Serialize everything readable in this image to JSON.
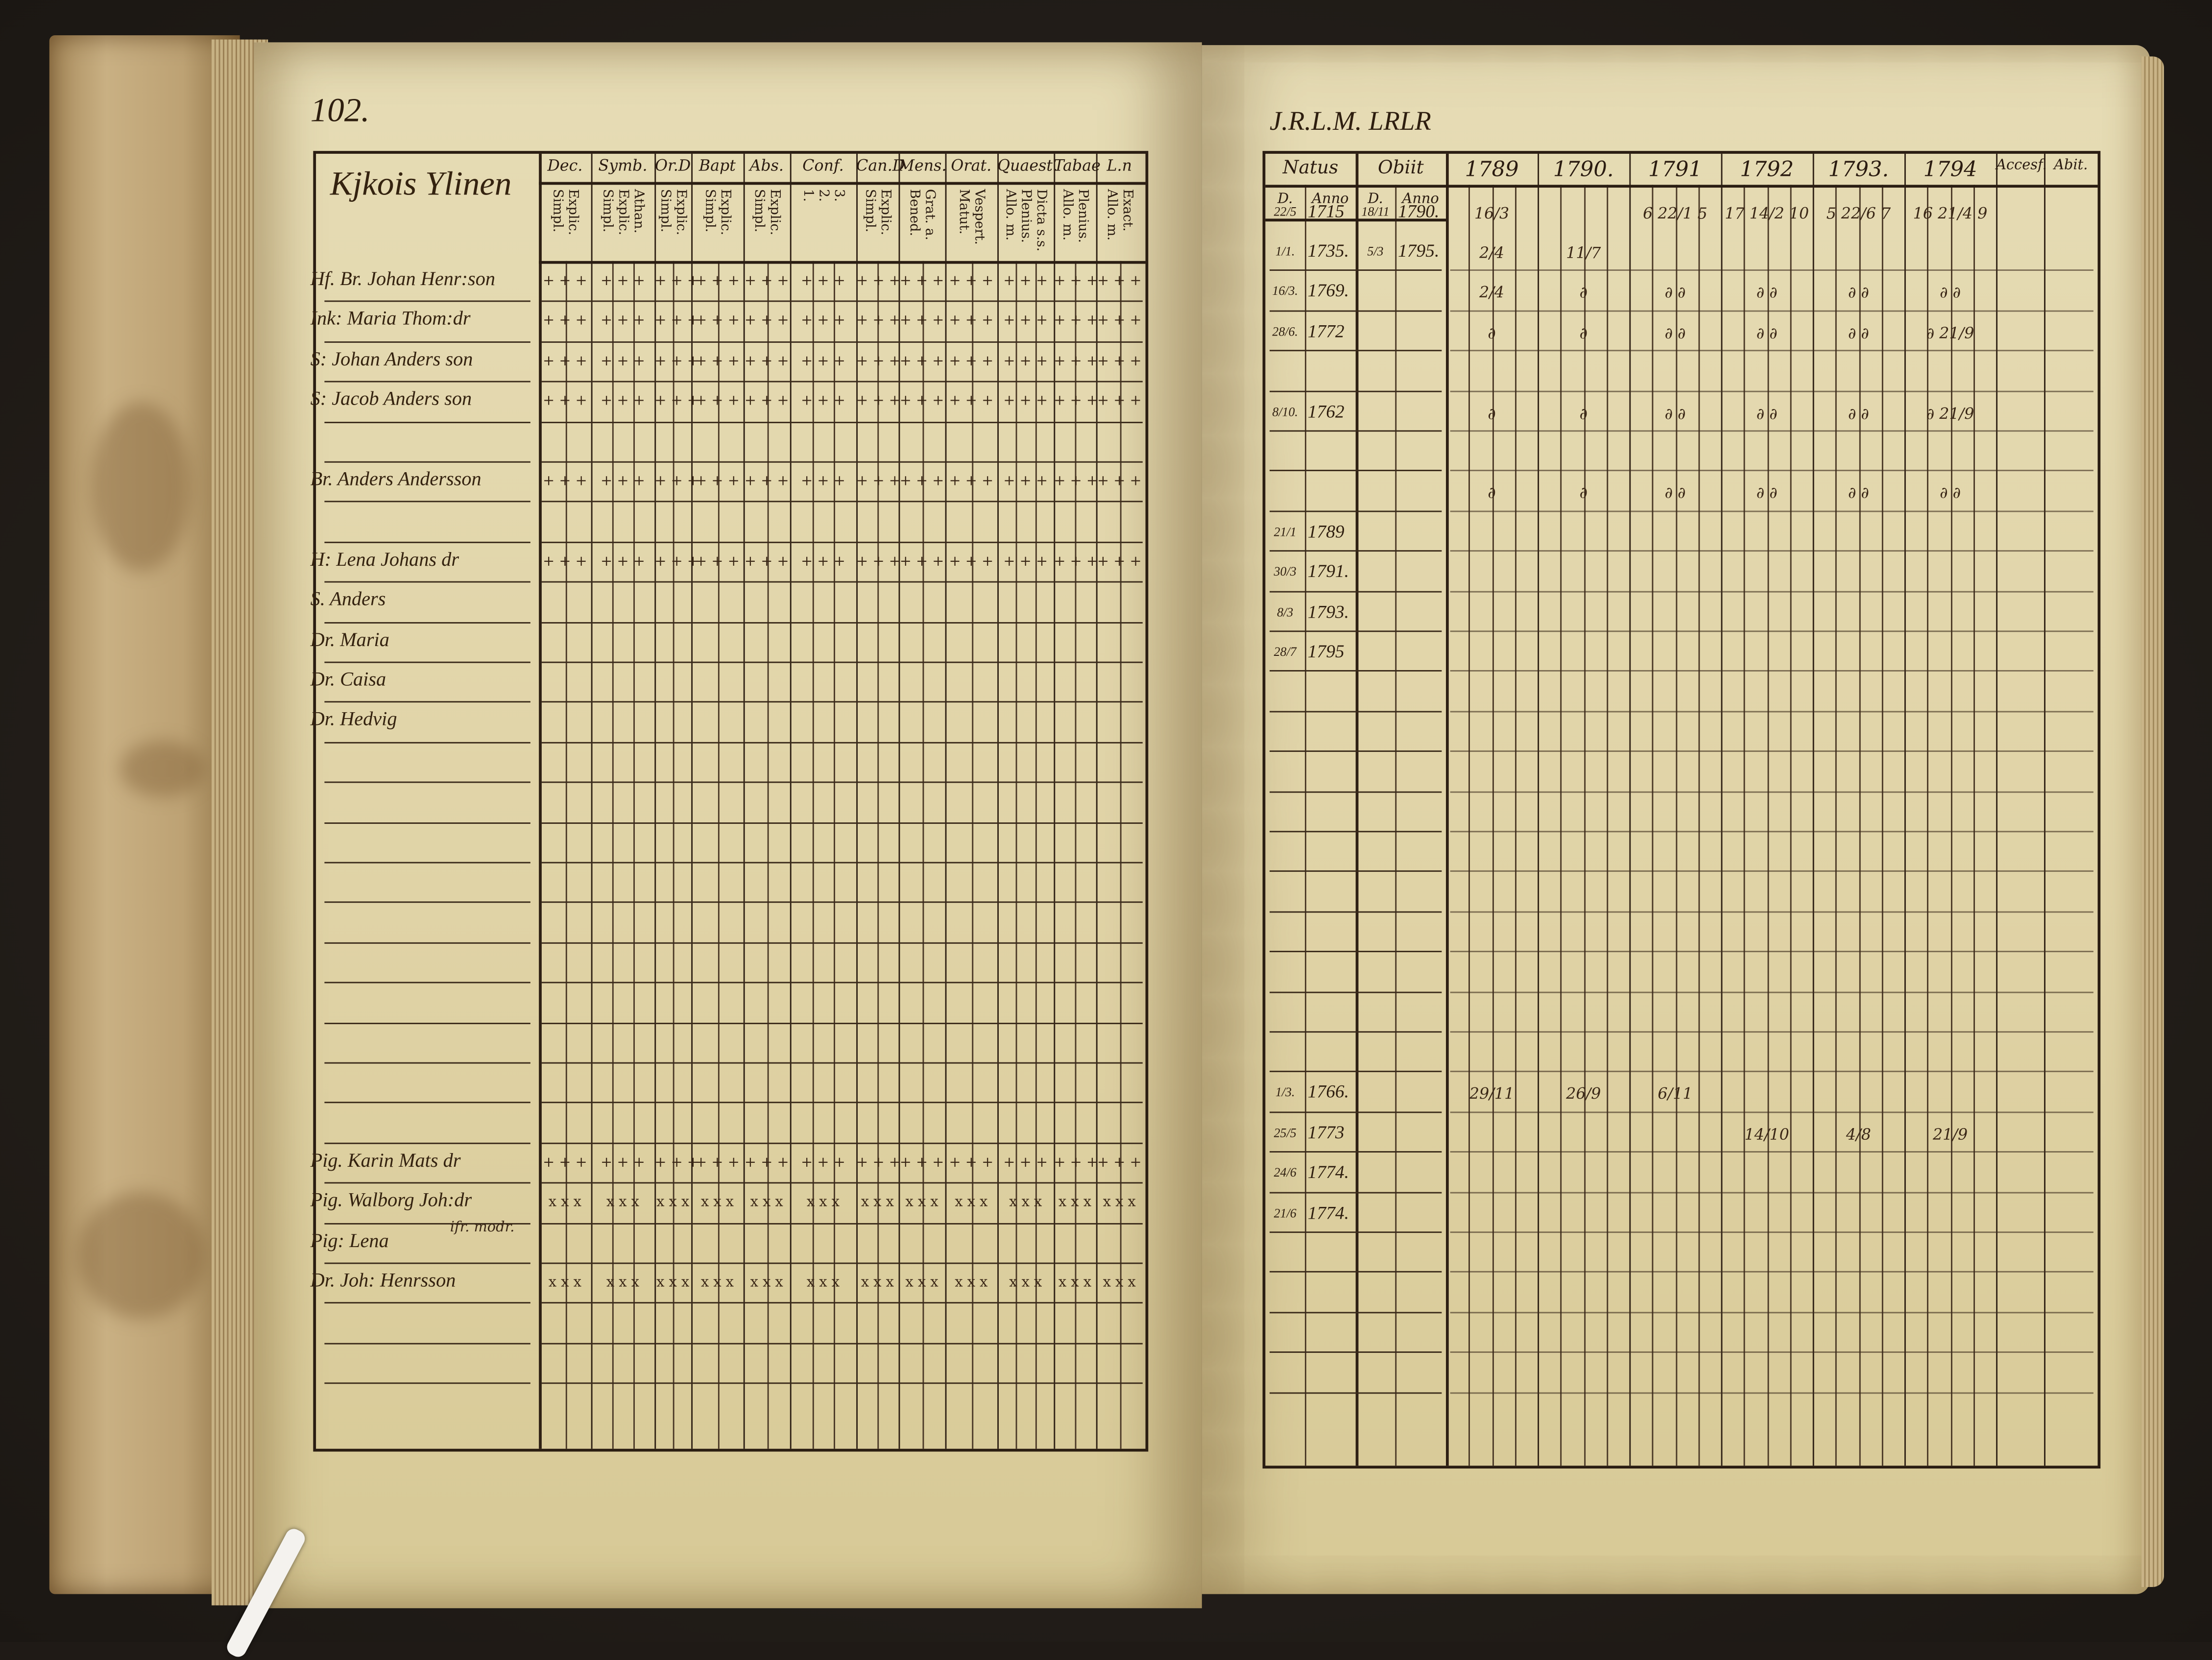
{
  "left_page": {
    "page_number": "102.",
    "heading": "Kjkois Ylinen",
    "columns": [
      {
        "label": "Dec.",
        "sub": [
          "Simpl.",
          "Explic."
        ]
      },
      {
        "label": "Symb.",
        "sub": [
          "Simpl.",
          "Explic.",
          "Athan."
        ]
      },
      {
        "label": "Or.D",
        "sub": [
          "Simpl.",
          "Explic."
        ]
      },
      {
        "label": "Bapt",
        "sub": [
          "Simpl.",
          "Explic."
        ]
      },
      {
        "label": "Abs.",
        "sub": [
          "Simpl.",
          "Explic."
        ]
      },
      {
        "label": "Conf.",
        "sub": [
          "1.",
          "2.",
          "3."
        ]
      },
      {
        "label": "Can.D",
        "sub": [
          "Simpl.",
          "Explic."
        ]
      },
      {
        "label": "Mens.",
        "sub": [
          "Bened.",
          "Grat. a."
        ]
      },
      {
        "label": "Orat.",
        "sub": [
          "Matut.",
          "Vespert."
        ]
      },
      {
        "label": "Quaest.",
        "sub": [
          "Allo. m.",
          "Plenius.",
          "Dicta s.s."
        ]
      },
      {
        "label": "Tabae",
        "sub": [
          "Allo. m.",
          "Plenius."
        ]
      },
      {
        "label": "L.n",
        "sub": [
          "Allo. m.",
          "Exact."
        ]
      }
    ]
  },
  "right_page": {
    "heading": "J.R.L.M. LRLR",
    "natus_label": "Natus",
    "obiit_label": "Obiit",
    "d_label": "D.",
    "anno_label": "Anno",
    "years": [
      "1789",
      "1790.",
      "1791",
      "1792",
      "1793.",
      "1794"
    ],
    "accessit_label": "Accesf.",
    "abiit_label": "Abit."
  },
  "rows": [
    {
      "name": "Hf. Br. Johan Henr:son",
      "mark": "+ + +",
      "natus_d": "22/5",
      "natus_anno": "1715",
      "obiit_d": "18/11",
      "obiit_anno": "1790.",
      "years_marks": [
        "16/3",
        "",
        "6 22/1 5",
        "17 14/2 10",
        "5 22/6 7",
        "16 21/4 9"
      ]
    },
    {
      "name": "Ink: Maria Thom:dr",
      "mark": "+ + +",
      "natus_d": "1/1.",
      "natus_anno": "1735.",
      "obiit_d": "5/3",
      "obiit_anno": "1795.",
      "years_marks": [
        "2/4",
        "11/7",
        "",
        "",
        "",
        ""
      ]
    },
    {
      "name": "S: Johan Anders son",
      "mark": "+ + +",
      "natus_d": "16/3.",
      "natus_anno": "1769.",
      "obiit_d": "",
      "obiit_anno": "",
      "years_marks": [
        "2/4",
        "∂",
        "∂ ∂",
        "∂ ∂",
        "∂ ∂",
        "∂ ∂"
      ]
    },
    {
      "name": "S: Jacob Anders son",
      "mark": "+ + +",
      "natus_d": "28/6.",
      "natus_anno": "1772",
      "obiit_d": "",
      "obiit_anno": "",
      "years_marks": [
        "∂",
        "∂",
        "∂ ∂",
        "∂ ∂",
        "∂ ∂",
        "∂ 21/9"
      ]
    },
    {},
    {
      "name": "Br. Anders Andersson",
      "mark": "+ + +",
      "natus_d": "8/10.",
      "natus_anno": "1762",
      "obiit_d": "",
      "obiit_anno": "",
      "years_marks": [
        "∂",
        "∂",
        "∂ ∂",
        "∂ ∂",
        "∂ ∂",
        "∂ 21/9"
      ]
    },
    {},
    {
      "name": "H: Lena Johans dr",
      "mark": "+ + +",
      "natus_d": "",
      "natus_anno": "",
      "obiit_d": "",
      "obiit_anno": "",
      "years_marks": [
        "∂",
        "∂",
        "∂ ∂",
        "∂ ∂",
        "∂ ∂",
        "∂ ∂"
      ]
    },
    {
      "name": "S. Anders",
      "natus_d": "21/1",
      "natus_anno": "1789"
    },
    {
      "name": "Dr. Maria",
      "natus_d": "30/3",
      "natus_anno": "1791."
    },
    {
      "name": "Dr. Caisa",
      "natus_d": "8/3",
      "natus_anno": "1793."
    },
    {
      "name": "Dr. Hedvig",
      "natus_d": "28/7",
      "natus_anno": "1795"
    },
    {},
    {},
    {},
    {},
    {},
    {},
    {},
    {},
    {},
    {},
    {
      "name": "Pig. Karin Mats dr",
      "mark": "+ + +",
      "natus_d": "1/3.",
      "natus_anno": "1766.",
      "years_marks": [
        "29/11",
        "26/9",
        "6/11",
        "",
        "",
        ""
      ]
    },
    {
      "name": "Pig. Walborg Joh:dr",
      "mark": "x x x",
      "natus_d": "25/5",
      "natus_anno": "1773",
      "years_marks": [
        "",
        "",
        "",
        "14/10",
        "4/8",
        "21/9"
      ]
    },
    {
      "name": "Pig: Lena",
      "note": "ifr. modr.",
      "natus_d": "24/6",
      "natus_anno": "1774."
    },
    {
      "name": "Dr. Joh: Henrsson",
      "mark": "x x x",
      "natus_d": "21/6",
      "natus_anno": "1774."
    },
    {},
    {},
    {}
  ],
  "colors": {
    "paper": "#e2d6a9",
    "ink": "#2a1b10",
    "background": "#1f1a16",
    "cover": "#bda274"
  }
}
